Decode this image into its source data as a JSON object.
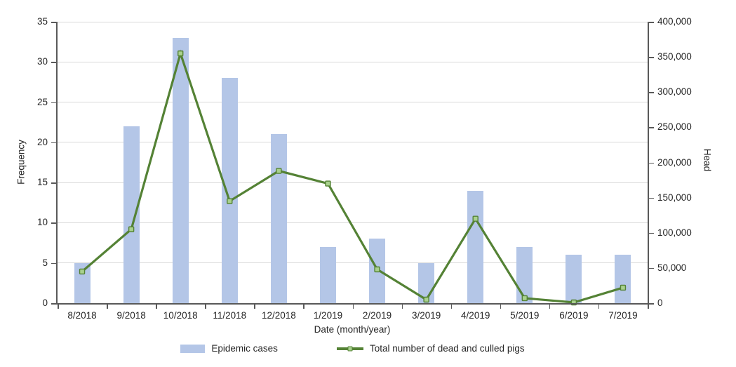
{
  "chart_data": {
    "type": "combo",
    "categories": [
      "8/2018",
      "9/2018",
      "10/2018",
      "11/2018",
      "12/2018",
      "1/2019",
      "2/2019",
      "3/2019",
      "4/2019",
      "5/2019",
      "6/2019",
      "7/2019"
    ],
    "series": [
      {
        "name": "Epidemic cases",
        "type": "bar",
        "axis": "left",
        "values": [
          5,
          22,
          33,
          28,
          21,
          7,
          8,
          5,
          14,
          7,
          6,
          6
        ]
      },
      {
        "name": "Total number of dead and culled pigs",
        "type": "line",
        "axis": "right",
        "values": [
          45000,
          105000,
          355000,
          145000,
          188000,
          170000,
          48000,
          5000,
          120000,
          7000,
          1000,
          22000
        ]
      }
    ],
    "xlabel": "Date (month/year)",
    "ylabel_left": "Frequency",
    "ylabel_right": "Head",
    "y_left": {
      "min": 0,
      "max": 35,
      "step": 5
    },
    "y_right": {
      "min": 0,
      "max": 400000,
      "step": 50000
    },
    "grid": true,
    "legend_position": "bottom"
  },
  "colors": {
    "bar_fill": "#b4c6e7",
    "line": "#548235",
    "marker_fill": "#a9d18e",
    "marker_stroke": "#548235",
    "gridline": "#d9d9d9",
    "axis": "#595959",
    "text": "#262626"
  }
}
